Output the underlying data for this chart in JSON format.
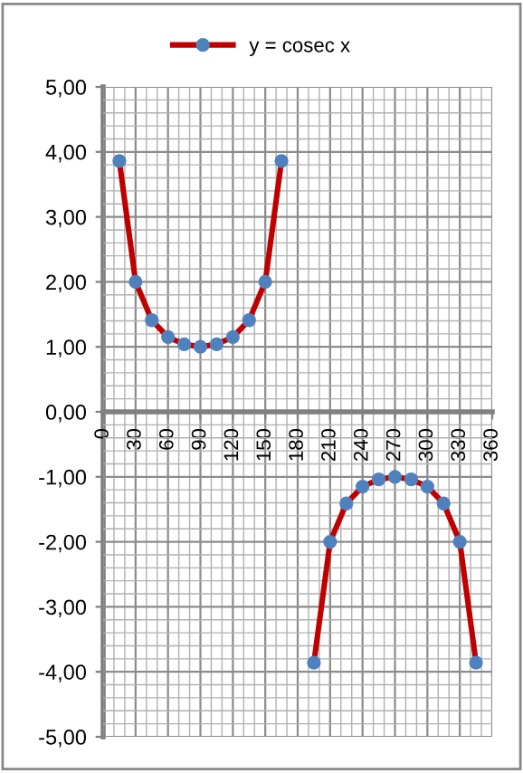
{
  "chart_data": {
    "type": "line",
    "x": [
      15,
      30,
      45,
      60,
      75,
      90,
      105,
      120,
      135,
      150,
      165,
      180,
      195,
      210,
      225,
      240,
      255,
      270,
      285,
      300,
      315,
      330,
      345
    ],
    "series": [
      {
        "name": "y = cosec x",
        "color": "#c00000",
        "values": [
          3.86,
          2.0,
          1.41,
          1.15,
          1.04,
          1.0,
          1.04,
          1.15,
          1.41,
          2.0,
          3.86,
          null,
          -3.86,
          -2.0,
          -1.41,
          -1.15,
          -1.04,
          -1.0,
          -1.04,
          -1.15,
          -1.41,
          -2.0,
          -3.86
        ]
      }
    ],
    "marker": "circle",
    "line_style": "solid",
    "grid": true,
    "legend": "top",
    "xlim": [
      0,
      360
    ],
    "xticks": [
      0,
      30,
      60,
      90,
      120,
      150,
      180,
      210,
      240,
      270,
      300,
      330,
      360
    ],
    "ylim": [
      -5,
      5
    ],
    "yticks": [
      {
        "value": -5,
        "label": "-5,00"
      },
      {
        "value": -4,
        "label": "-4,00"
      },
      {
        "value": -3,
        "label": "-3,00"
      },
      {
        "value": -2,
        "label": "-2,00"
      },
      {
        "value": -1,
        "label": "-1,00"
      },
      {
        "value": 0,
        "label": "0,00"
      },
      {
        "value": 1,
        "label": "1,00"
      },
      {
        "value": 2,
        "label": "2,00"
      },
      {
        "value": 3,
        "label": "3,00"
      },
      {
        "value": 4,
        "label": "4,00"
      },
      {
        "value": 5,
        "label": "5,00"
      }
    ]
  }
}
